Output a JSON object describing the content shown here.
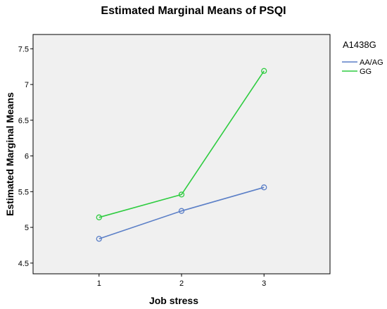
{
  "chart_data": {
    "type": "line",
    "title": "Estimated Marginal Means of PSQI",
    "xlabel": "Job stress",
    "ylabel": "Estimated Marginal Means",
    "x": [
      1,
      2,
      3
    ],
    "x_tick_labels": [
      "1",
      "2",
      "3"
    ],
    "xlim": [
      0.2,
      3.8
    ],
    "ylim": [
      4.35,
      7.7
    ],
    "y_ticks": [
      4.5,
      5,
      5.5,
      6,
      6.5,
      7,
      7.5
    ],
    "y_tick_labels": [
      "4.5",
      "5",
      "5.5",
      "6",
      "6.5",
      "7",
      "7.5"
    ],
    "grid": false,
    "background": "#f0f0f0",
    "legend": {
      "title": "A1438G",
      "position": "right"
    },
    "series": [
      {
        "name": "AA/AG",
        "color": "#5b7fc7",
        "values": [
          4.84,
          5.23,
          5.56
        ]
      },
      {
        "name": "GG",
        "color": "#2ecc40",
        "values": [
          5.14,
          5.46,
          7.19
        ]
      }
    ]
  }
}
